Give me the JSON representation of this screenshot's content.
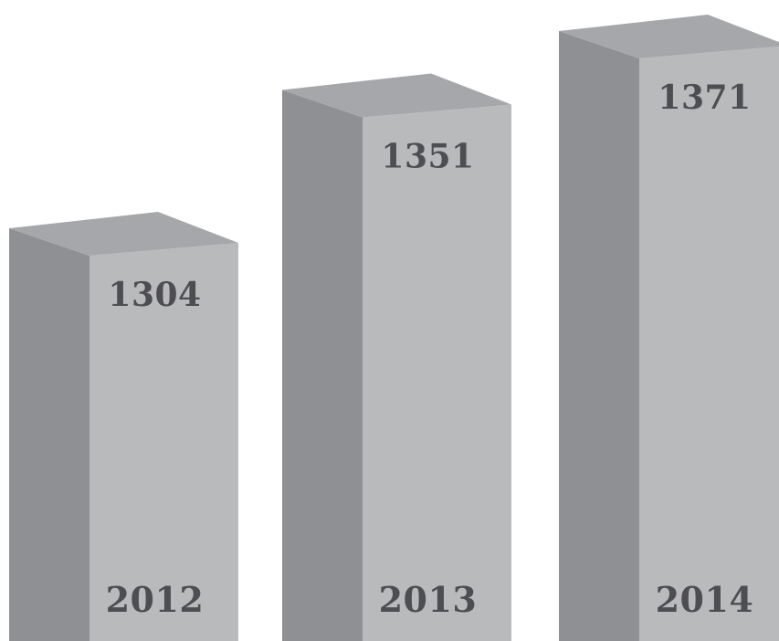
{
  "chart_data": {
    "type": "bar",
    "style": "3d-columns",
    "categories": [
      "2012",
      "2013",
      "2014"
    ],
    "values": [
      1304,
      1351,
      1371
    ],
    "title": "",
    "xlabel": "",
    "ylabel": "",
    "grid": false,
    "legend": "none",
    "colors": {
      "front_face": "#b9babc",
      "side_face": "#8f9093",
      "top_face": "#a6a7aa",
      "label": "#4d4d52"
    }
  }
}
